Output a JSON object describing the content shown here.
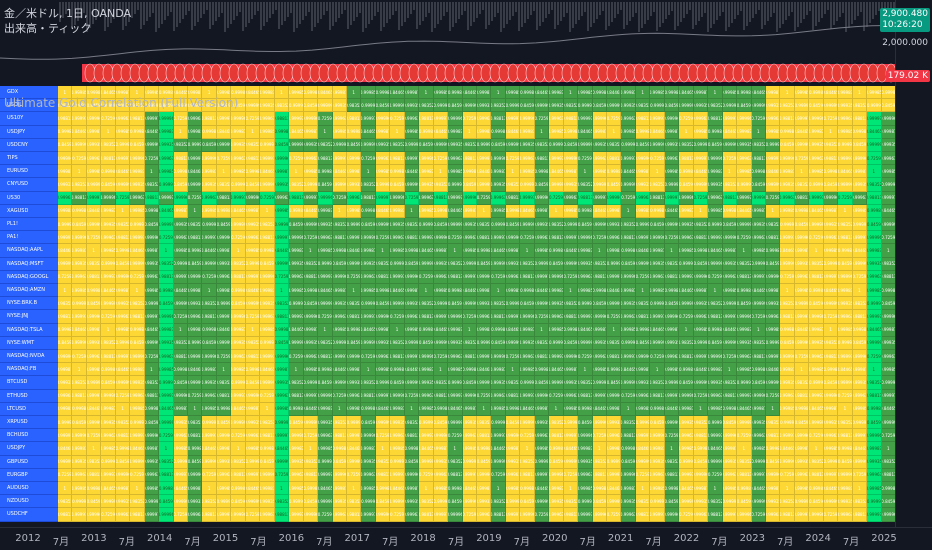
{
  "legend": {
    "symbol_line": "金／米ドル, 1日, OANDA",
    "volume_line": "出来高・ティック"
  },
  "price_scale": {
    "last_price": "2,900.480",
    "countdown": "10:26:20",
    "level": "2,000.000",
    "volume": "179.02 K"
  },
  "indicator": {
    "title": "Ultimate Gold Correlation (Full Version)",
    "title_suffix": ""
  },
  "time_axis": {
    "ticks": [
      "2012",
      "7月",
      "2013",
      "7月",
      "2014",
      "7月",
      "2015",
      "7月",
      "2016",
      "7月",
      "2017",
      "7月",
      "2018",
      "7月",
      "2019",
      "7月",
      "2020",
      "7月",
      "2021",
      "7月",
      "2022",
      "7月",
      "2023",
      "7月",
      "2024",
      "7月",
      "2025"
    ]
  },
  "table": {
    "rows": [
      "GDX",
      "USOIL",
      "US10Y",
      "USDJPY",
      "USDCNY",
      "TIPS",
      "EURUSD",
      "CNYUSD",
      "US30",
      "XAGUSD",
      "PL1!",
      "PA1!",
      "NASDAQ:AAPL",
      "NASDAQ:MSFT",
      "NASDAQ:GOOGL",
      "NASDAQ:AMZN",
      "NYSE:BRK.B",
      "NYSE:JNJ",
      "NASDAQ:TSLA",
      "NYSE:WMT",
      "NASDAQ:NVDA",
      "NASDAQ:FB",
      "BTCUSD",
      "ETHUSD",
      "LTCUSD",
      "XRPUSD",
      "BCHUSD",
      "USDJPY",
      "GBPUSD",
      "EURGBP",
      "AUDUSD",
      "NZDUSD",
      "USDCHF"
    ],
    "values": [
      "1",
      "0.99999",
      "0.99997",
      "0.99985",
      "0.99935",
      "0.99996",
      "0.9998",
      "0.98352",
      "0.7259",
      "0.84465",
      "0.9999",
      "0.99963",
      "0.99987",
      "0.8459",
      "0.98813"
    ]
  },
  "colors": {
    "background": "#131722",
    "row_label": "#2962ff",
    "corr_high": "#43a047",
    "corr_mid": "#fdd835",
    "corr_bright": "#00e676",
    "candle_bar": "#f23645"
  }
}
